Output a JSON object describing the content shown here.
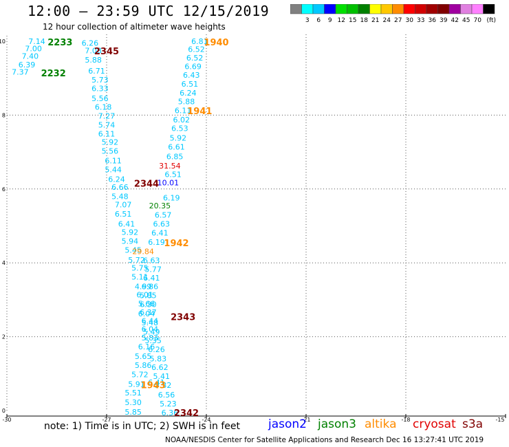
{
  "title": "12:00 – 23:59 UTC 12/15/2019",
  "subtitle": "12 hour collection of altimeter wave heights",
  "colorbar": {
    "colors": [
      "#808080",
      "#00ffff",
      "#00c8ff",
      "#0000ff",
      "#00e000",
      "#00c000",
      "#008000",
      "#ffff00",
      "#ffc800",
      "#ff8c00",
      "#ff0000",
      "#d20000",
      "#a00000",
      "#800000",
      "#a000a0",
      "#e080e0",
      "#ff80ff",
      "#000000"
    ],
    "labels": [
      "3",
      "6",
      "9",
      "12",
      "15",
      "18",
      "21",
      "24",
      "27",
      "30",
      "33",
      "36",
      "39",
      "42",
      "45",
      "70"
    ],
    "unit": "(ft)"
  },
  "note": "note:  1) Time is in UTC; 2) SWH is in feet",
  "missions": [
    {
      "name": "jason2",
      "color": "#0000ff"
    },
    {
      "name": "jason3",
      "color": "#008000"
    },
    {
      "name": "altika",
      "color": "#ff8c00"
    },
    {
      "name": "cryosat",
      "color": "#e00000"
    },
    {
      "name": "s3a",
      "color": "#800000"
    }
  ],
  "footer": "NOAA/NESDIS Center for Satellite Applications and Research     Dec 16 13:27:41 UTC 2019",
  "chart_data": {
    "type": "scatter",
    "xlim": [
      -30,
      -15
    ],
    "ylim": [
      0,
      10
    ],
    "xticks": [
      "-30",
      "-27",
      "-24",
      "-21",
      "-18",
      "-15"
    ],
    "yticks": [
      "0",
      "2",
      "4",
      "6",
      "8",
      "10"
    ],
    "grid": true,
    "points": [
      {
        "x": -29.1,
        "y": 10.0,
        "v": "7.14",
        "c": "#00c8ff"
      },
      {
        "x": -29.2,
        "y": 9.8,
        "v": "7.00",
        "c": "#00c8ff"
      },
      {
        "x": -29.3,
        "y": 9.6,
        "v": "7.40",
        "c": "#00c8ff"
      },
      {
        "x": -29.4,
        "y": 9.37,
        "v": "6.39",
        "c": "#00c8ff"
      },
      {
        "x": -29.6,
        "y": 9.17,
        "v": "7.37",
        "c": "#00c8ff"
      },
      {
        "x": -27.5,
        "y": 9.95,
        "v": "6.26",
        "c": "#00c8ff"
      },
      {
        "x": -27.4,
        "y": 9.75,
        "v": "7.08",
        "c": "#00c8ff"
      },
      {
        "x": -27.4,
        "y": 9.5,
        "v": "5.88",
        "c": "#00c8ff"
      },
      {
        "x": -27.3,
        "y": 9.2,
        "v": "6.71",
        "c": "#00c8ff"
      },
      {
        "x": -27.2,
        "y": 8.96,
        "v": "5.73",
        "c": "#00c8ff"
      },
      {
        "x": -27.2,
        "y": 8.72,
        "v": "6.33",
        "c": "#00c8ff"
      },
      {
        "x": -27.2,
        "y": 8.45,
        "v": "5.56",
        "c": "#00c8ff"
      },
      {
        "x": -27.1,
        "y": 8.22,
        "v": "6.18",
        "c": "#00c8ff"
      },
      {
        "x": -27.0,
        "y": 7.98,
        "v": "7.27",
        "c": "#00c8ff"
      },
      {
        "x": -27.0,
        "y": 7.74,
        "v": "5.74",
        "c": "#00c8ff"
      },
      {
        "x": -27.0,
        "y": 7.5,
        "v": "6.11",
        "c": "#00c8ff"
      },
      {
        "x": -26.9,
        "y": 7.27,
        "v": "5.92",
        "c": "#00c8ff"
      },
      {
        "x": -26.9,
        "y": 7.03,
        "v": "5.56",
        "c": "#00c8ff"
      },
      {
        "x": -26.8,
        "y": 6.77,
        "v": "6.11",
        "c": "#00c8ff"
      },
      {
        "x": -26.8,
        "y": 6.53,
        "v": "5.44",
        "c": "#00c8ff"
      },
      {
        "x": -26.7,
        "y": 6.27,
        "v": "6.24",
        "c": "#00c8ff"
      },
      {
        "x": -26.6,
        "y": 6.05,
        "v": "6.66",
        "c": "#00c8ff"
      },
      {
        "x": -26.6,
        "y": 5.8,
        "v": "5.48",
        "c": "#00c8ff"
      },
      {
        "x": -26.5,
        "y": 5.58,
        "v": "7.07",
        "c": "#00c8ff"
      },
      {
        "x": -26.5,
        "y": 5.33,
        "v": "6.51",
        "c": "#00c8ff"
      },
      {
        "x": -26.4,
        "y": 5.06,
        "v": "6.41",
        "c": "#00c8ff"
      },
      {
        "x": -26.3,
        "y": 4.83,
        "v": "5.92",
        "c": "#00c8ff"
      },
      {
        "x": -26.3,
        "y": 4.59,
        "v": "5.94",
        "c": "#00c8ff"
      },
      {
        "x": -26.2,
        "y": 4.35,
        "v": "5.45",
        "c": "#00c8ff"
      },
      {
        "x": -26.1,
        "y": 4.08,
        "v": "5.72",
        "c": "#00c8ff"
      },
      {
        "x": -26.0,
        "y": 3.86,
        "v": "5.75",
        "c": "#00c8ff"
      },
      {
        "x": -26.0,
        "y": 3.62,
        "v": "5.11",
        "c": "#00c8ff"
      },
      {
        "x": -25.9,
        "y": 3.36,
        "v": "4.99",
        "c": "#00c8ff"
      },
      {
        "x": -25.85,
        "y": 3.14,
        "v": "6.01",
        "c": "#00c8ff"
      },
      {
        "x": -25.8,
        "y": 2.9,
        "v": "5.66",
        "c": "#00c8ff"
      },
      {
        "x": -25.75,
        "y": 2.66,
        "v": "6.37",
        "c": "#00c8ff"
      },
      {
        "x": -25.7,
        "y": 2.43,
        "v": "6.44",
        "c": "#00c8ff"
      },
      {
        "x": -25.7,
        "y": 2.21,
        "v": "6.04",
        "c": "#00c8ff"
      },
      {
        "x": -25.7,
        "y": 1.97,
        "v": "5.83",
        "c": "#00c8ff"
      },
      {
        "x": -25.8,
        "y": 1.73,
        "v": "6.16",
        "c": "#00c8ff"
      },
      {
        "x": -25.9,
        "y": 1.47,
        "v": "5.65",
        "c": "#00c8ff"
      },
      {
        "x": -25.9,
        "y": 1.23,
        "v": "5.86",
        "c": "#00c8ff"
      },
      {
        "x": -26.0,
        "y": 0.98,
        "v": "5.72",
        "c": "#00c8ff"
      },
      {
        "x": -26.1,
        "y": 0.72,
        "v": "5.91",
        "c": "#00c8ff"
      },
      {
        "x": -26.2,
        "y": 0.48,
        "v": "5.51",
        "c": "#00c8ff"
      },
      {
        "x": -26.2,
        "y": 0.22,
        "v": "5.30",
        "c": "#00c8ff"
      },
      {
        "x": -26.2,
        "y": -0.04,
        "v": "5.85",
        "c": "#00c8ff"
      },
      {
        "x": -24.2,
        "y": 10.0,
        "v": "6.81",
        "c": "#00c8ff"
      },
      {
        "x": -24.3,
        "y": 9.79,
        "v": "6.52",
        "c": "#00c8ff"
      },
      {
        "x": -24.35,
        "y": 9.55,
        "v": "6.52",
        "c": "#00c8ff"
      },
      {
        "x": -24.4,
        "y": 9.32,
        "v": "6.69",
        "c": "#00c8ff"
      },
      {
        "x": -24.45,
        "y": 9.09,
        "v": "6.43",
        "c": "#00c8ff"
      },
      {
        "x": -24.5,
        "y": 8.85,
        "v": "6.51",
        "c": "#00c8ff"
      },
      {
        "x": -24.55,
        "y": 8.6,
        "v": "6.24",
        "c": "#00c8ff"
      },
      {
        "x": -24.6,
        "y": 8.37,
        "v": "5.88",
        "c": "#00c8ff"
      },
      {
        "x": -24.7,
        "y": 8.13,
        "v": "6.11",
        "c": "#00c8ff"
      },
      {
        "x": -24.75,
        "y": 7.88,
        "v": "6.02",
        "c": "#00c8ff"
      },
      {
        "x": -24.8,
        "y": 7.64,
        "v": "6.53",
        "c": "#00c8ff"
      },
      {
        "x": -24.85,
        "y": 7.38,
        "v": "5.92",
        "c": "#00c8ff"
      },
      {
        "x": -24.9,
        "y": 7.14,
        "v": "6.61",
        "c": "#00c8ff"
      },
      {
        "x": -24.95,
        "y": 6.88,
        "v": "6.85",
        "c": "#00c8ff"
      },
      {
        "x": -25.1,
        "y": 6.63,
        "v": "31.54",
        "c": "#e00000"
      },
      {
        "x": -25.0,
        "y": 6.4,
        "v": "6.51",
        "c": "#00c8ff"
      },
      {
        "x": -25.15,
        "y": 6.17,
        "v": "10.01",
        "c": "#0000ff"
      },
      {
        "x": -25.05,
        "y": 5.76,
        "v": "6.19",
        "c": "#00c8ff"
      },
      {
        "x": -25.4,
        "y": 5.55,
        "v": "20.35",
        "c": "#008000"
      },
      {
        "x": -25.3,
        "y": 5.3,
        "v": "6.57",
        "c": "#00c8ff"
      },
      {
        "x": -25.35,
        "y": 5.06,
        "v": "6.63",
        "c": "#00c8ff"
      },
      {
        "x": -25.4,
        "y": 4.81,
        "v": "6.41",
        "c": "#00c8ff"
      },
      {
        "x": -25.5,
        "y": 4.56,
        "v": "6.19",
        "c": "#00c8ff"
      },
      {
        "x": -25.9,
        "y": 4.31,
        "v": "29.84",
        "c": "#ff8c00"
      },
      {
        "x": -25.65,
        "y": 4.07,
        "v": "6.63",
        "c": "#00c8ff"
      },
      {
        "x": -25.6,
        "y": 3.83,
        "v": "5.77",
        "c": "#00c8ff"
      },
      {
        "x": -25.65,
        "y": 3.59,
        "v": "6.41",
        "c": "#00c8ff"
      },
      {
        "x": -25.7,
        "y": 3.36,
        "v": "6.86",
        "c": "#00c8ff"
      },
      {
        "x": -25.75,
        "y": 3.12,
        "v": "5.85",
        "c": "#00c8ff"
      },
      {
        "x": -25.75,
        "y": 2.88,
        "v": "6.30",
        "c": "#00c8ff"
      },
      {
        "x": -25.8,
        "y": 2.63,
        "v": "6.04",
        "c": "#00c8ff"
      },
      {
        "x": -25.7,
        "y": 2.38,
        "v": "5.48",
        "c": "#00c8ff"
      },
      {
        "x": -25.65,
        "y": 2.13,
        "v": "5.49",
        "c": "#00c8ff"
      },
      {
        "x": -25.6,
        "y": 1.9,
        "v": "5.35",
        "c": "#00c8ff"
      },
      {
        "x": -25.5,
        "y": 1.66,
        "v": "6.26",
        "c": "#00c8ff"
      },
      {
        "x": -25.45,
        "y": 1.41,
        "v": "5.83",
        "c": "#00c8ff"
      },
      {
        "x": -25.4,
        "y": 1.17,
        "v": "6.62",
        "c": "#00c8ff"
      },
      {
        "x": -25.35,
        "y": 0.93,
        "v": "5.41",
        "c": "#00c8ff"
      },
      {
        "x": -25.3,
        "y": 0.69,
        "v": "5.32",
        "c": "#00c8ff"
      },
      {
        "x": -25.2,
        "y": 0.43,
        "v": "6.56",
        "c": "#00c8ff"
      },
      {
        "x": -25.15,
        "y": 0.19,
        "v": "5.23",
        "c": "#00c8ff"
      },
      {
        "x": -25.1,
        "y": -0.06,
        "v": "6.36",
        "c": "#00c8ff"
      },
      {
        "x": -25.5,
        "y": 0.76,
        "v": "6.41",
        "c": "#00c8ff"
      }
    ],
    "annotations": [
      {
        "x": -28.4,
        "y": 9.98,
        "text": "2233",
        "c": "#008000"
      },
      {
        "x": -28.6,
        "y": 9.14,
        "text": "2232",
        "c": "#008000"
      },
      {
        "x": -27.0,
        "y": 9.74,
        "text": "2345",
        "c": "#800000"
      },
      {
        "x": -23.7,
        "y": 9.98,
        "text": "1940",
        "c": "#ff8c00"
      },
      {
        "x": -24.2,
        "y": 8.12,
        "text": "1941",
        "c": "#ff8c00"
      },
      {
        "x": -25.8,
        "y": 6.15,
        "text": "2344",
        "c": "#800000"
      },
      {
        "x": -24.9,
        "y": 4.54,
        "text": "1942",
        "c": "#ff8c00"
      },
      {
        "x": -24.7,
        "y": 2.54,
        "text": "2343",
        "c": "#800000"
      },
      {
        "x": -25.6,
        "y": 0.7,
        "text": "1943",
        "c": "#ff8c00"
      },
      {
        "x": -24.6,
        "y": -0.06,
        "text": "2342",
        "c": "#800000"
      }
    ]
  }
}
